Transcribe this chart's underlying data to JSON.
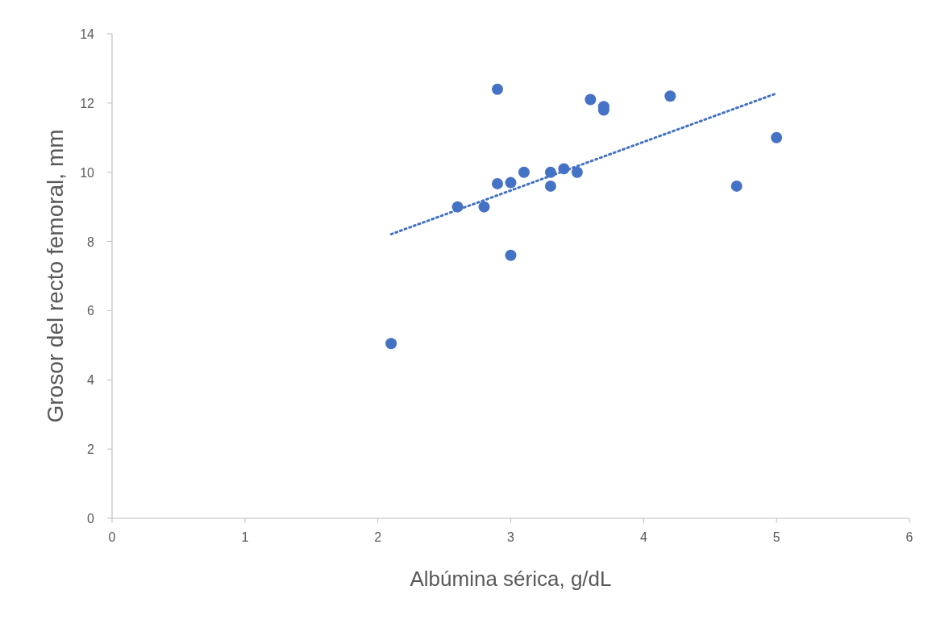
{
  "chart_data": {
    "type": "scatter",
    "xlabel": "Albúmina sérica, g/dL",
    "ylabel": "Grosor del recto femoral, mm",
    "xlim": [
      0,
      6
    ],
    "xticks": [
      0,
      1,
      2,
      3,
      4,
      5,
      6
    ],
    "ylim": [
      0,
      14
    ],
    "yticks": [
      0,
      2,
      4,
      6,
      8,
      10,
      12,
      14
    ],
    "grid": false,
    "marker": "circle",
    "series": [
      {
        "color": "#4472c4",
        "x": [
          2.1,
          2.6,
          2.8,
          2.9,
          2.9,
          3.0,
          3.0,
          3.1,
          3.3,
          3.3,
          3.4,
          3.5,
          3.6,
          3.7,
          3.7,
          4.2,
          4.7,
          5.0
        ],
        "values": [
          5.05,
          9.0,
          9.0,
          12.4,
          9.67,
          9.7,
          7.6,
          10.0,
          10.0,
          9.6,
          10.1,
          10.0,
          12.1,
          11.9,
          11.8,
          12.2,
          9.6,
          11.0
        ]
      },
      {
        "type": "line",
        "color": "#4472c4",
        "line_style": "dotted",
        "marker": "none",
        "x": [
          2.1,
          5.0
        ],
        "values": [
          8.21,
          12.28
        ]
      }
    ]
  }
}
